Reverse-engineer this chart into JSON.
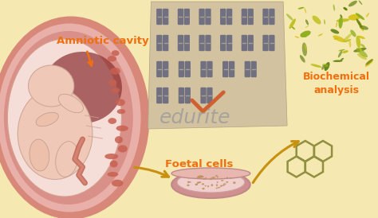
{
  "bg_color": "#f5e8b0",
  "label_amniotic": "Amniotic cavity",
  "label_foetal": "Foetal cells",
  "label_biochem": "Biochemical\nanalysis",
  "label_edurite": "edurite",
  "arrow_color": "#c89010",
  "label_color_orange": "#f07010",
  "womb_outer1": "#e8b0a8",
  "womb_outer2": "#d88878",
  "womb_mid": "#c87068",
  "womb_inner_bg": "#f0d0c8",
  "womb_dark": "#a04040",
  "fetus_skin": "#f0c8b8",
  "fetus_skin2": "#ecc0aa",
  "placenta_color": "#c86050",
  "karyotype_bg": "#d0c0a0",
  "chrom_color": "#707080",
  "petri_rim": "#d09090",
  "petri_fill": "#f0d0cc",
  "dot_color": "#c09060",
  "hex_color": "#909040",
  "green1": "#90b020",
  "green2": "#c0c020",
  "green3": "#608010",
  "check_color": "#d06030"
}
